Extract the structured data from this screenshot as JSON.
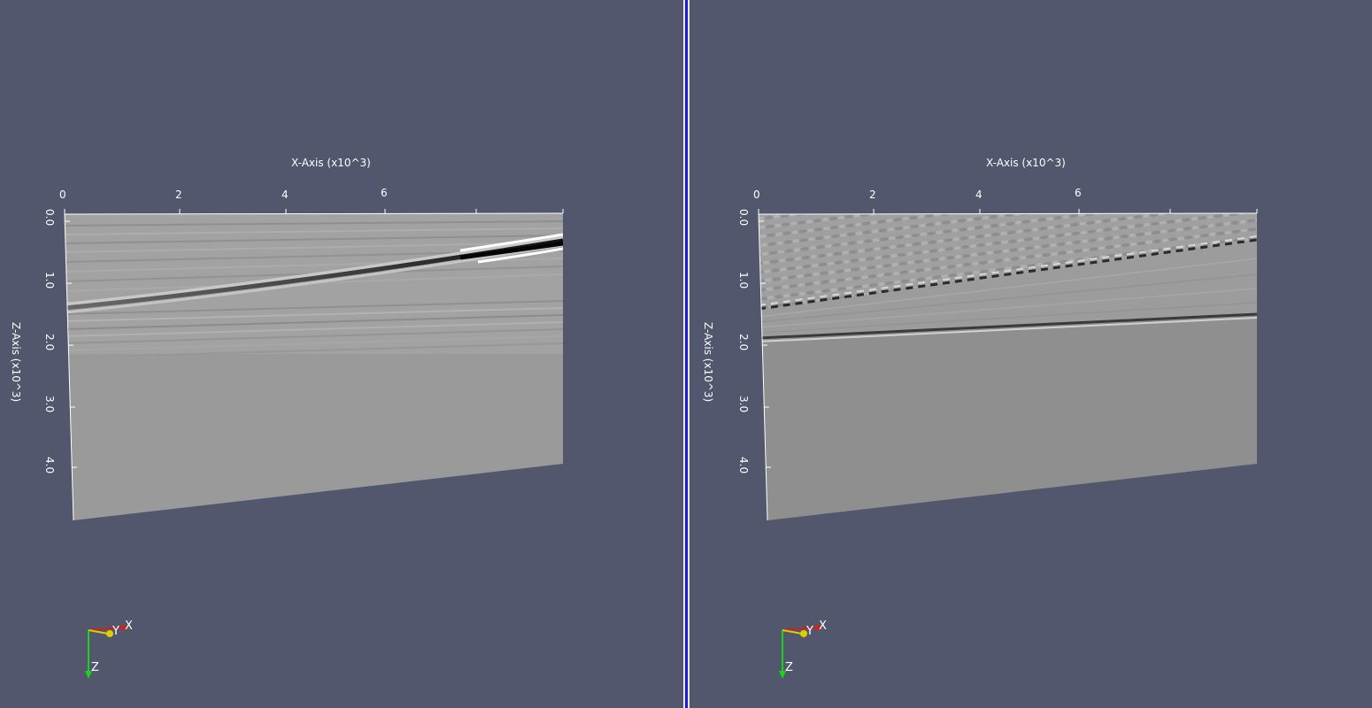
{
  "colors": {
    "background": "#52576e",
    "active_view_border": "#1a1ad8",
    "axis": "#ffffff",
    "triad_x": "#d02020",
    "triad_y": "#d8d000",
    "triad_z": "#20d020"
  },
  "views": [
    {
      "id": "left",
      "image": "migration-input",
      "x_axis": {
        "title": "X-Axis (x10^3)",
        "ticks": [
          "0",
          "2",
          "4",
          "6"
        ]
      },
      "z_axis": {
        "title": "Z-Axis (x10^3)",
        "ticks": [
          "0.0",
          "1.0",
          "2.0",
          "3.0",
          "4.0"
        ]
      },
      "triad": {
        "x": "X",
        "y": "Y",
        "z": "Z"
      }
    },
    {
      "id": "right",
      "image": "migration-output",
      "x_axis": {
        "title": "X-Axis (x10^3)",
        "ticks": [
          "0",
          "2",
          "4",
          "6"
        ]
      },
      "z_axis": {
        "title": "Z-Axis (x10^3)",
        "ticks": [
          "0.0",
          "1.0",
          "2.0",
          "3.0",
          "4.0"
        ]
      },
      "triad": {
        "x": "X",
        "y": "Y",
        "z": "Z"
      }
    }
  ]
}
